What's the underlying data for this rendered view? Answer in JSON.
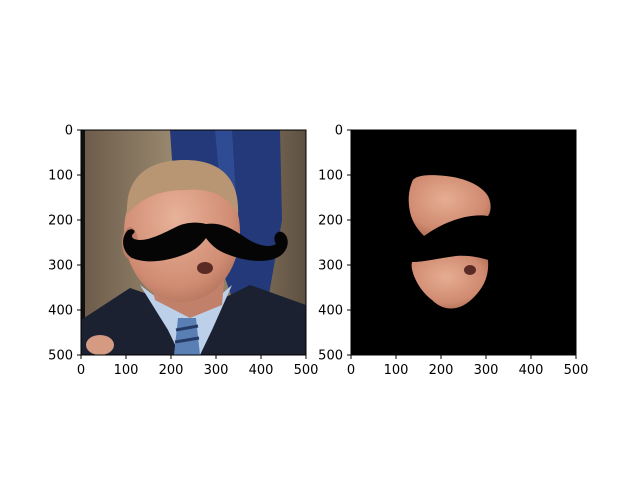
{
  "chart_data": [
    {
      "type": "image",
      "title": "",
      "xlabel": "",
      "ylabel": "",
      "xlim": [
        0,
        500
      ],
      "ylim": [
        500,
        0
      ],
      "xticks": [
        0,
        100,
        200,
        300,
        400,
        500
      ],
      "yticks": [
        0,
        100,
        200,
        300,
        400,
        500
      ],
      "xtick_labels": [
        "0",
        "100",
        "200",
        "300",
        "400",
        "500"
      ],
      "ytick_labels": [
        "0",
        "100",
        "200",
        "300",
        "400",
        "500"
      ],
      "grid": false,
      "content": "photo of a man in suit and tie with a black mustache overlay across the face"
    },
    {
      "type": "image",
      "title": "",
      "xlabel": "",
      "ylabel": "",
      "xlim": [
        0,
        500
      ],
      "ylim": [
        500,
        0
      ],
      "xticks": [
        0,
        100,
        200,
        300,
        400,
        500
      ],
      "yticks": [
        0,
        100,
        200,
        300,
        400,
        500
      ],
      "xtick_labels": [
        "0",
        "100",
        "200",
        "300",
        "400",
        "500"
      ],
      "ytick_labels": [
        "0",
        "100",
        "200",
        "300",
        "400",
        "500"
      ],
      "grid": false,
      "content": "face skin segmentation mask on black background, mustache region removed"
    }
  ],
  "colors": {
    "mask_background": "#000000",
    "mustache": "#050505",
    "skin": "#d9977f",
    "hair": "#c9a07a",
    "suit": "#1c2233",
    "shirt": "#bcd0ea",
    "tie": "#5a7fb5",
    "flag": "#233a7a",
    "backdrop": "#9a8a72"
  }
}
